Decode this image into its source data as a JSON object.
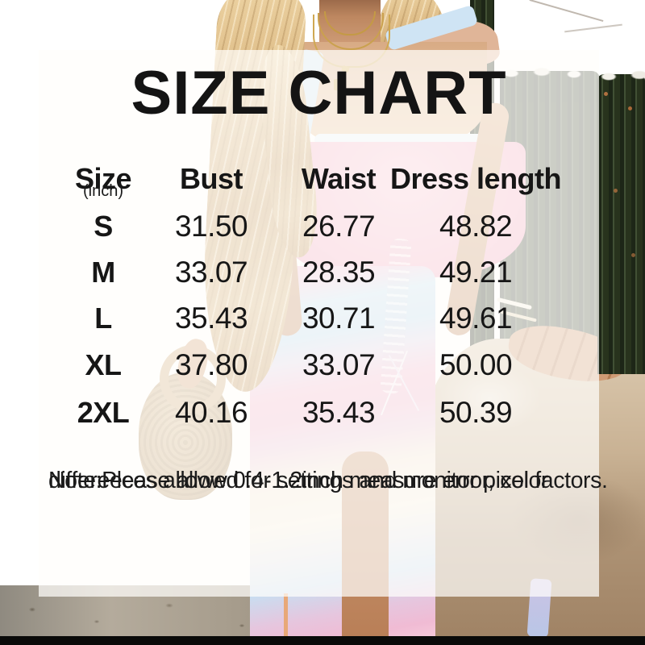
{
  "title": "SIZE CHART",
  "table": {
    "unit_label": "(inch)",
    "headers": {
      "size": "Size",
      "bust": "Bust",
      "waist": "Waist",
      "dress_length": "Dress length"
    },
    "rows": [
      {
        "size": "S",
        "bust": "31.50",
        "waist": "26.77",
        "dress_length": "48.82"
      },
      {
        "size": "M",
        "bust": "33.07",
        "waist": "28.35",
        "dress_length": "49.21"
      },
      {
        "size": "L",
        "bust": "35.43",
        "waist": "30.71",
        "dress_length": "49.61"
      },
      {
        "size": "XL",
        "bust": "37.80",
        "waist": "33.07",
        "dress_length": "50.00"
      },
      {
        "size": "2XL",
        "bust": "40.16",
        "waist": "35.43",
        "dress_length": "50.39"
      }
    ]
  },
  "note": {
    "line1": "Note:Please allow 0.4-1.2inch measure error, color",
    "line2": "differeeces allowed for settings and monitor pixel factors."
  },
  "chart_data": {
    "type": "table",
    "title": "SIZE CHART",
    "unit": "inch",
    "columns": [
      "Size (inch)",
      "Bust",
      "Waist",
      "Dress length"
    ],
    "rows": [
      [
        "S",
        31.5,
        26.77,
        48.82
      ],
      [
        "M",
        33.07,
        28.35,
        49.21
      ],
      [
        "L",
        35.43,
        30.71,
        49.61
      ],
      [
        "XL",
        37.8,
        33.07,
        50.0
      ],
      [
        "2XL",
        40.16,
        35.43,
        50.39
      ]
    ],
    "note": "Note:Please allow 0.4-1.2inch measure error, color differeeces allowed for settings and monitor pixel factors."
  },
  "photo": {
    "subject": "model in pastel tie-dye ruched bodycon midi dress standing by a cactus with a straw bag"
  },
  "colors": {
    "text": "#161616",
    "overlay_panel": "#fffefb",
    "dress_pink": "#f3aec6",
    "dress_blue": "#cfe4f4",
    "cactus_green": "#28331d",
    "wall_taupe": "#c6bfb5",
    "bottom_bar": "#0a0a09"
  }
}
